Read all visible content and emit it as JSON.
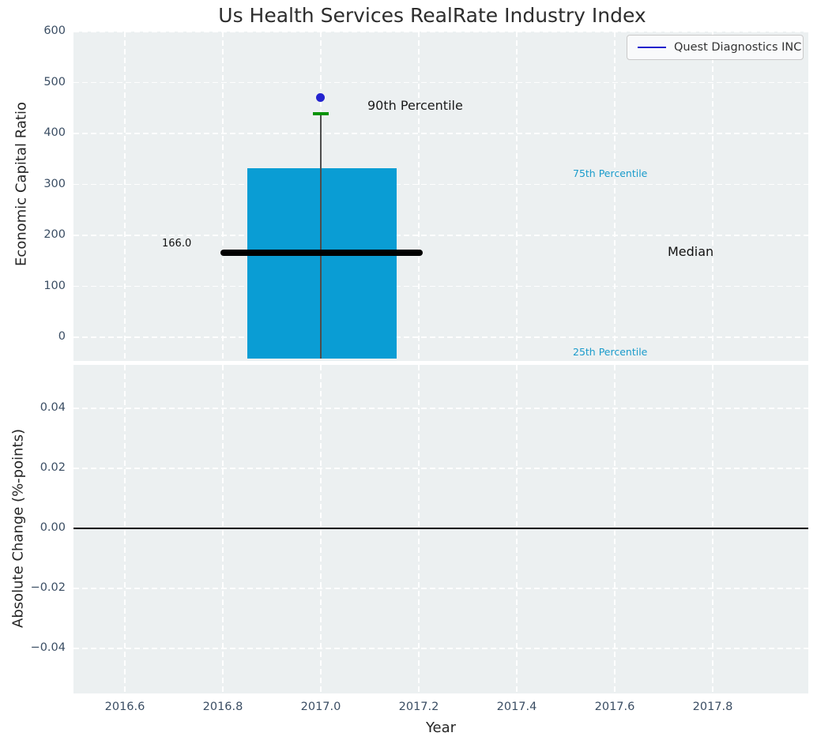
{
  "figure_title": "Us Health Services RealRate Industry Index",
  "colors": {
    "axes_background": "#ecf0f1",
    "grid": "#ffffff",
    "iqr_bar": "#0a9dd4",
    "percentile_text": "#1a9bcb",
    "company_blue": "#2222cc",
    "p90_green": "#089308",
    "median_black": "#000000",
    "tick_text": "#3a4d63"
  },
  "chart_data": [
    {
      "type": "box",
      "title": "Us Health Services RealRate Industry Index",
      "ylabel": "Economic Capital Ratio",
      "ylim": [
        -46.5,
        600
      ],
      "grid": "white dashed",
      "yticks": [
        {
          "v": 600,
          "label": "600"
        },
        {
          "v": 500,
          "label": "500"
        },
        {
          "v": 400,
          "label": "400"
        },
        {
          "v": 300,
          "label": "300"
        },
        {
          "v": 200,
          "label": "200"
        },
        {
          "v": 100,
          "label": "100"
        },
        {
          "v": 0,
          "label": "0"
        }
      ],
      "box": {
        "x_center": 2017.0,
        "x_width": 0.3,
        "p25": -42,
        "median": 166.0,
        "p75": 330,
        "p90": 440
      },
      "company_point": {
        "name": "Quest Diagnostics INC",
        "x": 2017.0,
        "y": 470
      },
      "labels": {
        "median_value": "166.0",
        "p90": "90th Percentile",
        "p75": "75th Percentile",
        "p25": "25th Percentile",
        "median": "Median"
      },
      "legend": {
        "label": "Quest Diagnostics INC",
        "location": "upper right"
      }
    },
    {
      "type": "line",
      "ylabel": "Absolute Change (%-points)",
      "xlabel": "Year",
      "ylim": [
        -0.055,
        0.055
      ],
      "xlim": [
        2016.5,
        2018.0
      ],
      "grid": "white dashed",
      "zero_line_y": 0.0,
      "series": [],
      "yticks": [
        {
          "v": 0.04,
          "label": "0.04"
        },
        {
          "v": 0.02,
          "label": "0.02"
        },
        {
          "v": 0.0,
          "label": "0.00"
        },
        {
          "v": -0.02,
          "label": "−0.02"
        },
        {
          "v": -0.04,
          "label": "−0.04"
        }
      ],
      "xticks": [
        {
          "v": 2016.6,
          "label": "2016.6"
        },
        {
          "v": 2016.8,
          "label": "2016.8"
        },
        {
          "v": 2017.0,
          "label": "2017.0"
        },
        {
          "v": 2017.2,
          "label": "2017.2"
        },
        {
          "v": 2017.4,
          "label": "2017.4"
        },
        {
          "v": 2017.6,
          "label": "2017.6"
        },
        {
          "v": 2017.8,
          "label": "2017.8"
        }
      ]
    }
  ]
}
